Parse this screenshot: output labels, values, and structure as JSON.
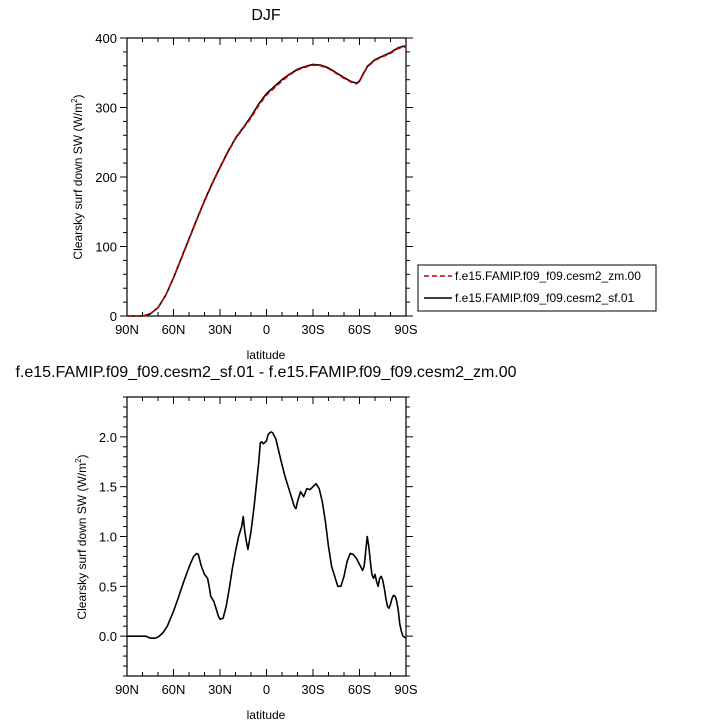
{
  "chart_data": [
    {
      "type": "line",
      "title": "DJF",
      "xlabel": "latitude",
      "ylabel": "Clearsky surf down SW (W/m",
      "ylabel_sup": "2",
      "ylabel_tail": ")",
      "xlim": [
        -90,
        90
      ],
      "ylim": [
        0,
        400
      ],
      "x_ticks": [
        -90,
        -60,
        -30,
        0,
        30,
        60,
        90
      ],
      "x_tick_labels": [
        "90N",
        "60N",
        "30N",
        "0",
        "30S",
        "60S",
        "90S"
      ],
      "y_ticks": [
        0,
        100,
        200,
        300,
        400
      ],
      "y_tick_labels": [
        "0",
        "100",
        "200",
        "300",
        "400"
      ],
      "legend": "outside-right",
      "series": [
        {
          "name": "f.e15.FAMIP.f09_f09.cesm2_zm.00",
          "color": "#d00000",
          "dash": "dashed",
          "x": [
            -90,
            -80,
            -75,
            -70,
            -65,
            -60,
            -55,
            -50,
            -45,
            -40,
            -35,
            -30,
            -25,
            -20,
            -15,
            -10,
            -5,
            0,
            5,
            10,
            15,
            20,
            25,
            30,
            35,
            40,
            45,
            50,
            55,
            58,
            60,
            62,
            65,
            70,
            75,
            80,
            85,
            88,
            90
          ],
          "values": [
            0,
            0,
            3,
            12,
            30,
            55,
            82,
            110,
            138,
            165,
            190,
            213,
            235,
            255,
            270,
            285,
            303,
            318,
            328,
            338,
            347,
            354,
            358,
            361,
            360,
            356,
            349,
            342,
            336,
            334,
            337,
            346,
            358,
            368,
            373,
            378,
            385,
            387,
            387
          ]
        },
        {
          "name": "f.e15.FAMIP.f09_f09.cesm2_sf.01",
          "color": "#000000",
          "dash": "solid",
          "x": [
            -90,
            -80,
            -75,
            -70,
            -65,
            -60,
            -55,
            -50,
            -45,
            -40,
            -35,
            -30,
            -25,
            -20,
            -15,
            -10,
            -5,
            0,
            5,
            10,
            15,
            20,
            25,
            30,
            35,
            40,
            45,
            50,
            55,
            58,
            60,
            62,
            65,
            70,
            75,
            80,
            85,
            88,
            90
          ],
          "values": [
            0,
            0,
            3,
            12,
            30,
            55,
            83,
            111,
            139,
            166,
            191,
            214,
            236,
            256,
            271,
            287,
            305,
            320,
            330,
            340,
            348,
            355,
            359,
            362,
            361,
            357,
            350,
            343,
            337,
            335,
            338,
            347,
            359,
            369,
            374,
            379,
            386,
            388,
            388
          ]
        }
      ]
    },
    {
      "type": "line",
      "title": "f.e15.FAMIP.f09_f09.cesm2_sf.01 - f.e15.FAMIP.f09_f09.cesm2_zm.00",
      "xlabel": "latitude",
      "ylabel": "Clearsky surf down SW (W/m",
      "ylabel_sup": "2",
      "ylabel_tail": ")",
      "xlim": [
        -90,
        90
      ],
      "ylim": [
        -0.4,
        2.4
      ],
      "x_ticks": [
        -90,
        -60,
        -30,
        0,
        30,
        60,
        90
      ],
      "x_tick_labels": [
        "90N",
        "60N",
        "30N",
        "0",
        "30S",
        "60S",
        "90S"
      ],
      "y_ticks": [
        0,
        0.5,
        1,
        1.5,
        2
      ],
      "y_tick_labels": [
        "0.0",
        "0.5",
        "1.0",
        "1.5",
        "2.0"
      ],
      "series": [
        {
          "color": "#000000",
          "dash": "solid",
          "x": [
            -90,
            -82,
            -78,
            -75,
            -72,
            -70,
            -67,
            -64,
            -60,
            -57,
            -54,
            -51,
            -49,
            -47,
            -45,
            -44,
            -42,
            -40,
            -38,
            -37,
            -36,
            -34,
            -32,
            -31,
            -30,
            -28,
            -26,
            -24,
            -22,
            -20,
            -18,
            -16,
            -15,
            -14,
            -13,
            -12,
            -10,
            -8,
            -6,
            -5,
            -4,
            -3,
            -2,
            0,
            1,
            2,
            3,
            4,
            6,
            8,
            10,
            12,
            14,
            16,
            18,
            19,
            20,
            22,
            24,
            26,
            28,
            30,
            32,
            34,
            36,
            38,
            40,
            42,
            44,
            46,
            48,
            50,
            52,
            54,
            56,
            58,
            60,
            62,
            63,
            64,
            65,
            66,
            67,
            68,
            69,
            70,
            71,
            72,
            73,
            74,
            75,
            76,
            77,
            78,
            79,
            80,
            81,
            82,
            83,
            84,
            85,
            86,
            87,
            88,
            89,
            90
          ],
          "values": [
            0,
            0,
            0,
            -0.02,
            -0.02,
            -0.01,
            0.03,
            0.1,
            0.25,
            0.38,
            0.52,
            0.65,
            0.73,
            0.8,
            0.83,
            0.82,
            0.7,
            0.62,
            0.58,
            0.5,
            0.4,
            0.35,
            0.25,
            0.2,
            0.17,
            0.18,
            0.3,
            0.48,
            0.68,
            0.85,
            1.0,
            1.1,
            1.2,
            1.05,
            0.95,
            0.87,
            1.05,
            1.3,
            1.6,
            1.75,
            1.94,
            1.95,
            1.93,
            1.96,
            2.02,
            2.04,
            2.05,
            2.04,
            1.98,
            1.85,
            1.72,
            1.6,
            1.5,
            1.4,
            1.3,
            1.28,
            1.35,
            1.45,
            1.4,
            1.48,
            1.47,
            1.5,
            1.53,
            1.48,
            1.35,
            1.15,
            0.9,
            0.7,
            0.6,
            0.5,
            0.5,
            0.6,
            0.75,
            0.83,
            0.82,
            0.78,
            0.72,
            0.66,
            0.7,
            0.85,
            1.0,
            0.9,
            0.75,
            0.62,
            0.58,
            0.62,
            0.55,
            0.5,
            0.58,
            0.6,
            0.56,
            0.48,
            0.38,
            0.3,
            0.28,
            0.32,
            0.38,
            0.41,
            0.4,
            0.35,
            0.26,
            0.12,
            0.05,
            0.0,
            -0.01,
            -0.02
          ]
        }
      ]
    }
  ]
}
